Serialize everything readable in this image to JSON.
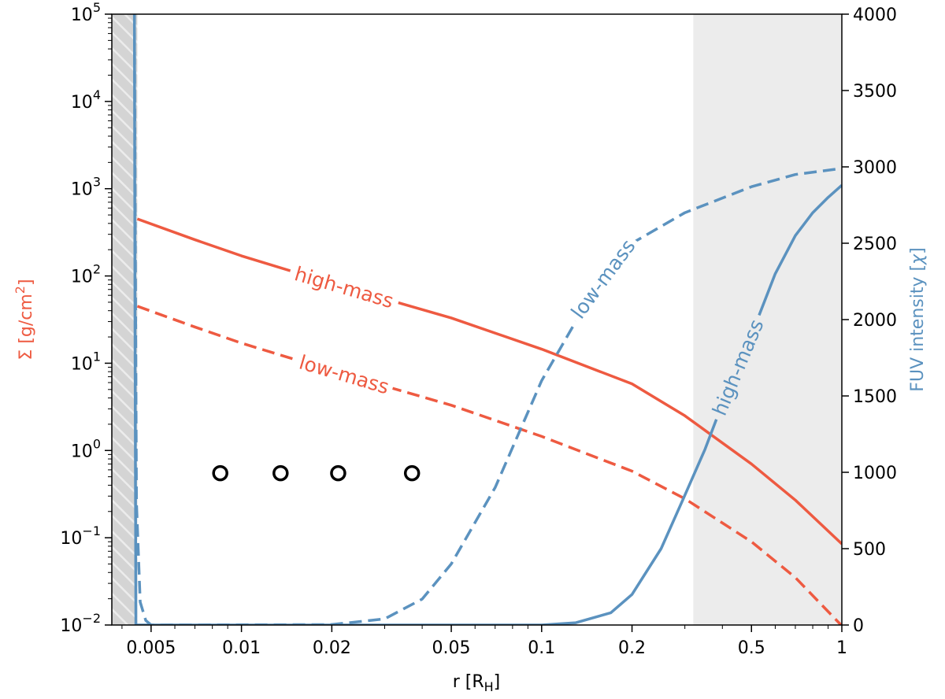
{
  "colors": {
    "sigma": "#ee5a41",
    "fuv": "#5b92bf",
    "shade_inner": "#d4d4d4",
    "shade_outer": "#ececec",
    "axis": "#000000"
  },
  "labels": {
    "left_axis": {
      "prefix": "Σ [g/cm",
      "sup": "2",
      "suffix": "]"
    },
    "right_axis": {
      "prefix": "FUV intensity [",
      "symbol": "χ",
      "suffix": "]"
    },
    "x_axis": {
      "prefix": "r [R",
      "sub": "H",
      "suffix": "]"
    }
  },
  "chart_data": {
    "type": "line",
    "title": "",
    "x_scale": "log",
    "xlim": [
      0.0037,
      1.0
    ],
    "y_left": {
      "scale": "log",
      "ylim": [
        0.01,
        100000
      ],
      "label": "Σ [g/cm²]"
    },
    "y_right": {
      "scale": "linear",
      "ylim": [
        0,
        4000
      ],
      "label": "FUV intensity [χ]"
    },
    "x_ticks": [
      {
        "v": 0.005,
        "label": "0.005"
      },
      {
        "v": 0.01,
        "label": "0.01"
      },
      {
        "v": 0.02,
        "label": "0.02"
      },
      {
        "v": 0.05,
        "label": "0.05"
      },
      {
        "v": 0.1,
        "label": "0.1"
      },
      {
        "v": 0.2,
        "label": "0.2"
      },
      {
        "v": 0.5,
        "label": "0.5"
      },
      {
        "v": 1,
        "label": "1"
      }
    ],
    "y_left_ticks": [
      {
        "v": 0.01,
        "base": "10",
        "exp": "−2"
      },
      {
        "v": 0.1,
        "base": "10",
        "exp": "−1"
      },
      {
        "v": 1,
        "base": "10",
        "exp": "0"
      },
      {
        "v": 10,
        "base": "10",
        "exp": "1"
      },
      {
        "v": 100,
        "base": "10",
        "exp": "2"
      },
      {
        "v": 1000,
        "base": "10",
        "exp": "3"
      },
      {
        "v": 10000,
        "base": "10",
        "exp": "4"
      },
      {
        "v": 100000,
        "base": "10",
        "exp": "5"
      }
    ],
    "y_right_ticks": [
      {
        "v": 0,
        "label": "0"
      },
      {
        "v": 500,
        "label": "500"
      },
      {
        "v": 1000,
        "label": "1000"
      },
      {
        "v": 1500,
        "label": "1500"
      },
      {
        "v": 2000,
        "label": "2000"
      },
      {
        "v": 2500,
        "label": "2500"
      },
      {
        "v": 3000,
        "label": "3000"
      },
      {
        "v": 3500,
        "label": "3500"
      },
      {
        "v": 4000,
        "label": "4000"
      }
    ],
    "shaded_regions": [
      {
        "name": "inner-hatched-region",
        "x_range": [
          0.0037,
          0.0045
        ],
        "style": "hatched"
      },
      {
        "name": "outer-grey-region",
        "x_range": [
          0.32,
          1.0
        ],
        "style": "solid"
      }
    ],
    "series": [
      {
        "name": "high-mass",
        "quantity": "Σ",
        "axis": "left",
        "style": "solid",
        "label_at": 0.022,
        "points": [
          [
            0.0045,
            450
          ],
          [
            0.007,
            260
          ],
          [
            0.01,
            170
          ],
          [
            0.02,
            82
          ],
          [
            0.05,
            33
          ],
          [
            0.1,
            14.5
          ],
          [
            0.2,
            5.8
          ],
          [
            0.3,
            2.5
          ],
          [
            0.5,
            0.7
          ],
          [
            0.7,
            0.27
          ],
          [
            1.0,
            0.085
          ]
        ]
      },
      {
        "name": "low-mass",
        "quantity": "Σ",
        "axis": "left",
        "style": "dashed",
        "label_at": 0.022,
        "points": [
          [
            0.0045,
            45
          ],
          [
            0.007,
            26
          ],
          [
            0.01,
            17
          ],
          [
            0.02,
            8.2
          ],
          [
            0.05,
            3.3
          ],
          [
            0.1,
            1.45
          ],
          [
            0.2,
            0.58
          ],
          [
            0.3,
            0.28
          ],
          [
            0.5,
            0.09
          ],
          [
            0.7,
            0.035
          ],
          [
            1.0,
            0.0098
          ]
        ]
      },
      {
        "name": "low-mass",
        "quantity": "FUV",
        "axis": "right",
        "style": "dashed",
        "label_at": 0.16,
        "points": [
          [
            0.0044,
            4000
          ],
          [
            0.00443,
            2500
          ],
          [
            0.00447,
            800
          ],
          [
            0.0046,
            150
          ],
          [
            0.0048,
            30
          ],
          [
            0.005,
            0
          ],
          [
            0.02,
            3
          ],
          [
            0.03,
            40
          ],
          [
            0.04,
            170
          ],
          [
            0.05,
            400
          ],
          [
            0.07,
            900
          ],
          [
            0.1,
            1600
          ],
          [
            0.15,
            2200
          ],
          [
            0.2,
            2500
          ],
          [
            0.3,
            2700
          ],
          [
            0.5,
            2870
          ],
          [
            0.7,
            2950
          ],
          [
            1.0,
            2990
          ]
        ]
      },
      {
        "name": "high-mass",
        "quantity": "FUV",
        "axis": "right",
        "style": "solid",
        "label_at": 0.45,
        "points": [
          [
            0.0044,
            4000
          ],
          [
            0.00442,
            2000
          ],
          [
            0.00445,
            0
          ],
          [
            0.1,
            0
          ],
          [
            0.13,
            15
          ],
          [
            0.17,
            80
          ],
          [
            0.2,
            200
          ],
          [
            0.25,
            500
          ],
          [
            0.3,
            850
          ],
          [
            0.35,
            1150
          ],
          [
            0.4,
            1450
          ],
          [
            0.5,
            1900
          ],
          [
            0.6,
            2300
          ],
          [
            0.7,
            2550
          ],
          [
            0.8,
            2700
          ],
          [
            0.9,
            2800
          ],
          [
            1.0,
            2880
          ]
        ]
      }
    ],
    "markers": {
      "y": 0.55,
      "x": [
        0.0085,
        0.0135,
        0.021,
        0.037
      ]
    }
  }
}
